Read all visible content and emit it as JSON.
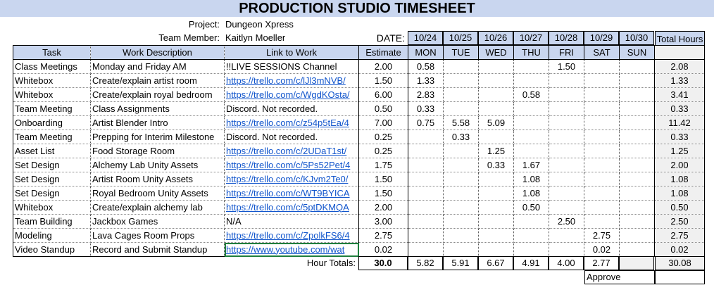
{
  "title": "PRODUCTION STUDIO TIMESHEET",
  "project_label": "Project:",
  "project_value": "Dungeon Xpress",
  "member_label": "Team Member:",
  "member_value": "Kaitlyn Moeller",
  "date_label": "DATE:",
  "dates": [
    "10/24",
    "10/25",
    "10/26",
    "10/27",
    "10/28",
    "10/29",
    "10/30"
  ],
  "days": [
    "MON",
    "TUE",
    "WED",
    "THU",
    "FRI",
    "SAT",
    "SUN"
  ],
  "total_header": "Total Hours",
  "columns": [
    "Task",
    "Work Description",
    "Link to Work",
    "Estimate"
  ],
  "rows": [
    {
      "task": "Class Meetings",
      "desc": "Monday and Friday AM",
      "link": "!!LIVE SESSIONS Channel",
      "is_link": false,
      "est": "2.00",
      "days": [
        "0.58",
        "",
        "",
        "",
        "1.50",
        "",
        ""
      ],
      "total": "2.08"
    },
    {
      "task": "Whitebox",
      "desc": "Create/explain artist room",
      "link": "https://trello.com/c/lJl3mNVB/",
      "is_link": true,
      "est": "1.50",
      "days": [
        "1.33",
        "",
        "",
        "",
        "",
        "",
        ""
      ],
      "total": "1.33"
    },
    {
      "task": "Whitebox",
      "desc": "Create/explain royal bedroom",
      "link": "https://trello.com/c/WgdKOsta/",
      "is_link": true,
      "est": "6.00",
      "days": [
        "2.83",
        "",
        "",
        "0.58",
        "",
        "",
        ""
      ],
      "total": "3.41"
    },
    {
      "task": "Team Meeting",
      "desc": "Class Assignments",
      "link": "Discord. Not recorded.",
      "is_link": false,
      "est": "0.50",
      "days": [
        "0.33",
        "",
        "",
        "",
        "",
        "",
        ""
      ],
      "total": "0.33"
    },
    {
      "task": "Onboarding",
      "desc": "Artist Blender Intro",
      "link": "https://trello.com/c/z54p5tEa/4",
      "is_link": true,
      "est": "7.00",
      "days": [
        "0.75",
        "5.58",
        "5.09",
        "",
        "",
        "",
        ""
      ],
      "total": "11.42"
    },
    {
      "task": "Team Meeting",
      "desc": "Prepping for Interim Milestone",
      "link": "Discord. Not recorded.",
      "is_link": false,
      "est": "0.25",
      "days": [
        "",
        "0.33",
        "",
        "",
        "",
        "",
        ""
      ],
      "total": "0.33"
    },
    {
      "task": "Asset List",
      "desc": "Food Storage Room",
      "link": "https://trello.com/c/2UDaT1st/",
      "is_link": true,
      "est": "0.25",
      "days": [
        "",
        "",
        "1.25",
        "",
        "",
        "",
        ""
      ],
      "total": "1.25"
    },
    {
      "task": "Set Design",
      "desc": "Alchemy Lab Unity Assets",
      "link": "https://trello.com/c/5Ps52Pet/4",
      "is_link": true,
      "est": "1.75",
      "days": [
        "",
        "",
        "0.33",
        "1.67",
        "",
        "",
        ""
      ],
      "total": "2.00"
    },
    {
      "task": "Set Design",
      "desc": "Artist Room Unity Assets",
      "link": "https://trello.com/c/KJvm2Te0/",
      "is_link": true,
      "est": "1.50",
      "days": [
        "",
        "",
        "",
        "1.08",
        "",
        "",
        ""
      ],
      "total": "1.08"
    },
    {
      "task": "Set Design",
      "desc": "Royal Bedroom Unity Assets",
      "link": "https://trello.com/c/WT9BYICA",
      "is_link": true,
      "est": "1.50",
      "days": [
        "",
        "",
        "",
        "1.08",
        "",
        "",
        ""
      ],
      "total": "1.08"
    },
    {
      "task": "Whitebox",
      "desc": "Create/explain alchemy lab",
      "link": "https://trello.com/c/5ptDKMQA",
      "is_link": true,
      "est": "2.00",
      "days": [
        "",
        "",
        "",
        "0.50",
        "",
        "",
        ""
      ],
      "total": "0.50"
    },
    {
      "task": "Team Building",
      "desc": "Jackbox Games",
      "link": "N/A",
      "is_link": false,
      "est": "3.00",
      "days": [
        "",
        "",
        "",
        "",
        "2.50",
        "",
        ""
      ],
      "total": "2.50"
    },
    {
      "task": "Modeling",
      "desc": "Lava Cages Room Props",
      "link": "https://trello.com/c/ZpolkFS6/4",
      "is_link": true,
      "est": "2.75",
      "days": [
        "",
        "",
        "",
        "",
        "",
        "2.75",
        ""
      ],
      "total": "2.75"
    },
    {
      "task": "Video Standup",
      "desc": "Record and Submit Standup",
      "link": "https://www.youtube.com/wat",
      "is_link": true,
      "est": "0.02",
      "days": [
        "",
        "",
        "",
        "",
        "",
        "0.02",
        ""
      ],
      "total": "0.02"
    }
  ],
  "hour_totals_label": "Hour Totals:",
  "totals": {
    "est": "30.0",
    "days": [
      "5.82",
      "5.91",
      "6.67",
      "4.91",
      "4.00",
      "2.77",
      ""
    ],
    "total": "30.08"
  },
  "approve_label": "Approve"
}
